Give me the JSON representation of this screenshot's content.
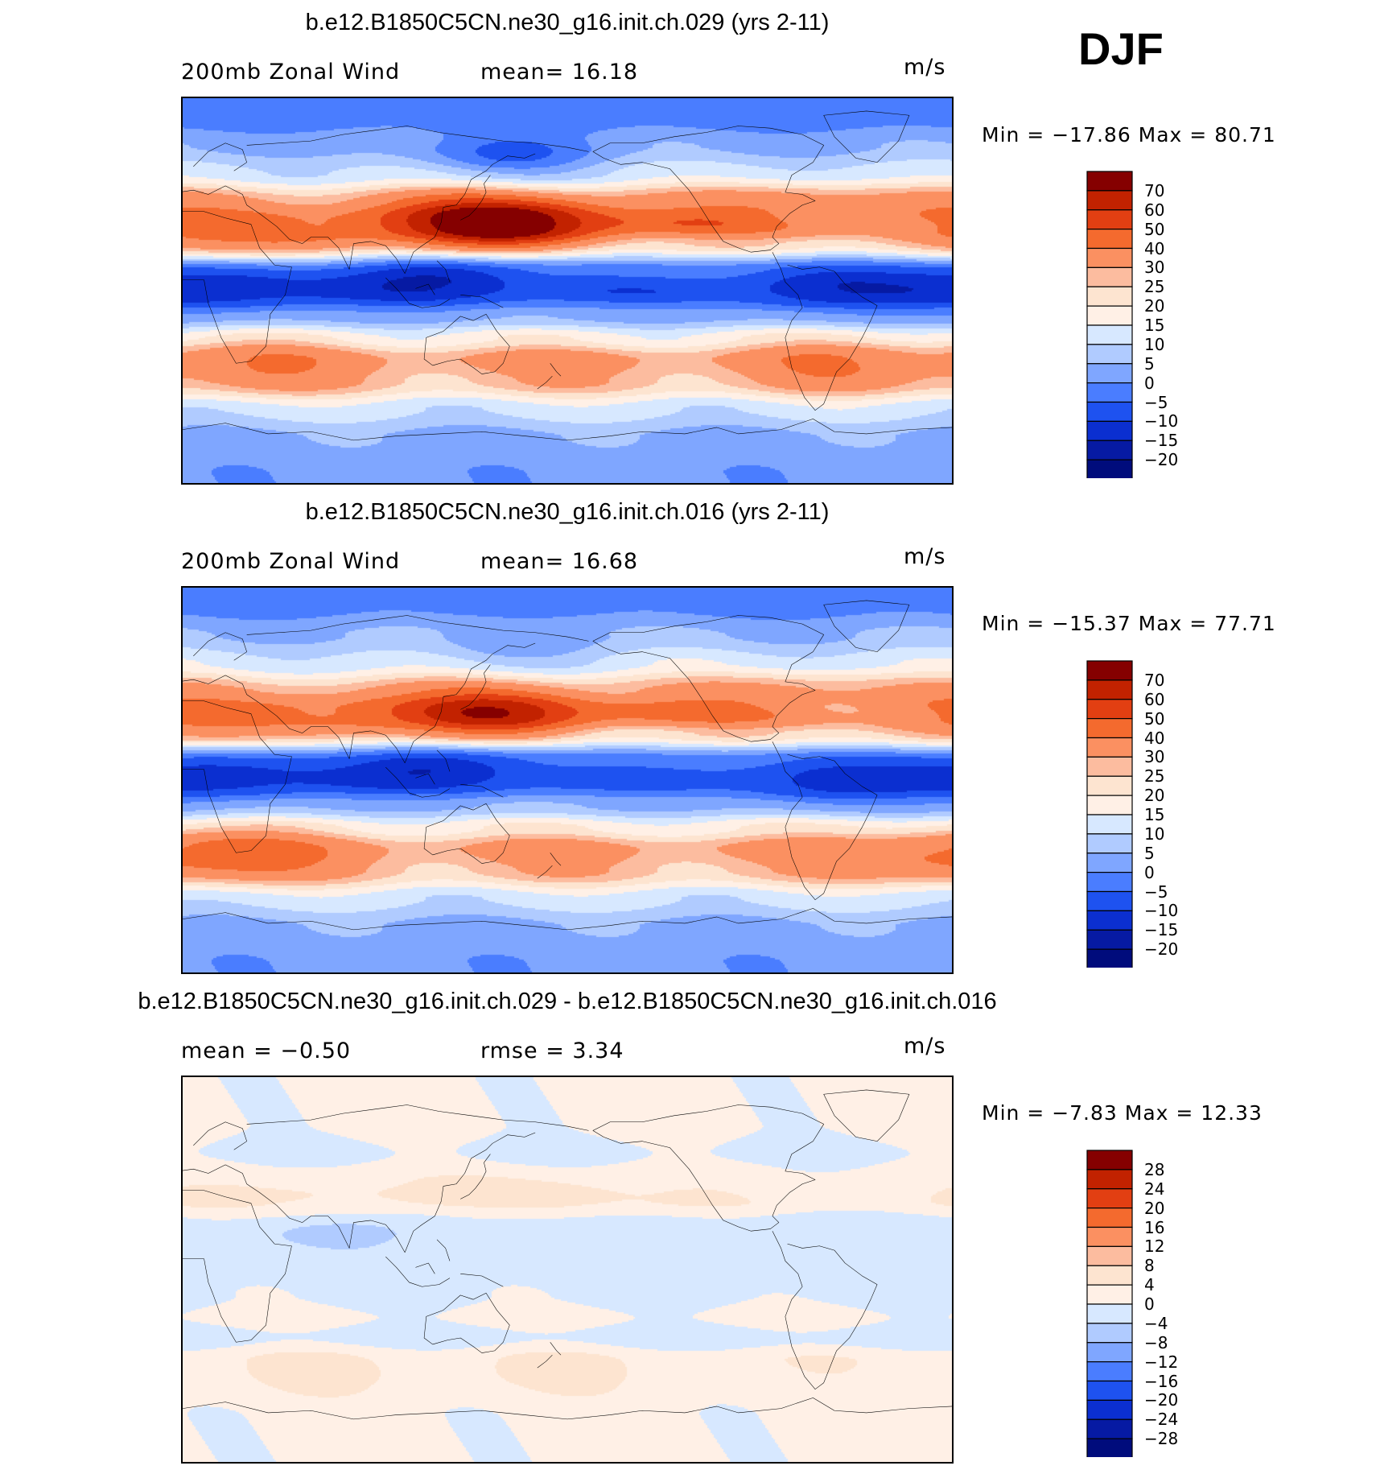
{
  "season": "DJF",
  "units": "m/s",
  "panels": [
    {
      "title": "b.e12.B1850C5CN.ne30_g16.init.ch.029 (yrs 2-11)",
      "left_label": "200mb  Zonal  Wind",
      "mid_label": "mean=   16.18",
      "units": "m/s",
      "min_max": "Min  =  −17.86  Max  =    80.71"
    },
    {
      "title": "b.e12.B1850C5CN.ne30_g16.init.ch.016 (yrs 2-11)",
      "left_label": "200mb  Zonal  Wind",
      "mid_label": "mean=   16.68",
      "units": "m/s",
      "min_max": "Min  =  −15.37  Max  =    77.71"
    },
    {
      "title": "b.e12.B1850C5CN.ne30_g16.init.ch.029 - b.e12.B1850C5CN.ne30_g16.init.ch.016",
      "left_label": "mean  =    −0.50",
      "mid_label": "rmse  =     3.34",
      "units": "m/s",
      "min_max": "Min  =    −7.83  Max  =    12.33"
    }
  ],
  "chart_data": [
    {
      "type": "heatmap",
      "title": "b.e12.B1850C5CN.ne30_g16.init.ch.029 (yrs 2-11)",
      "variable": "200mb Zonal Wind",
      "mean": 16.18,
      "min": -17.86,
      "max": 80.71,
      "colorbar_levels": [
        "70",
        "60",
        "50",
        "40",
        "30",
        "25",
        "20",
        "15",
        "10",
        "5",
        "0",
        "−5",
        "−10",
        "−15",
        "−20"
      ],
      "colorbar_colors": [
        "#850000",
        "#c22200",
        "#e23f12",
        "#f46a2e",
        "#fb9061",
        "#fcbc9f",
        "#fde4d0",
        "#fff0e6",
        "#d7e8ff",
        "#b0cbff",
        "#7fa6ff",
        "#4a7dff",
        "#1e52f0",
        "#0b2fd0",
        "#061aa3",
        "#000c7c"
      ],
      "bands": [
        {
          "lat": 82,
          "value": -3
        },
        {
          "lat": 68,
          "value": 4
        },
        {
          "lat": 55,
          "value": 12
        },
        {
          "lat": 42,
          "value": 30
        },
        {
          "lat": 32,
          "value": 45
        },
        {
          "lat": 22,
          "value": 22
        },
        {
          "lat": 10,
          "value": -2
        },
        {
          "lat": 0,
          "value": -8
        },
        {
          "lat": -12,
          "value": 4
        },
        {
          "lat": -22,
          "value": 18
        },
        {
          "lat": -32,
          "value": 33
        },
        {
          "lat": -42,
          "value": 28
        },
        {
          "lat": -55,
          "value": 12
        },
        {
          "lat": -68,
          "value": 4
        },
        {
          "lat": -85,
          "value": 1
        }
      ],
      "features": [
        {
          "lon": 160,
          "lat": 32,
          "value": 72
        },
        {
          "lon": 135,
          "lat": 33,
          "value": 58
        },
        {
          "lon": 60,
          "lat": 28,
          "value": 46
        },
        {
          "lon": 290,
          "lat": 38,
          "value": 40
        },
        {
          "lon": 352,
          "lat": 30,
          "value": 36
        },
        {
          "lon": 20,
          "lat": 2,
          "value": -15
        },
        {
          "lon": 120,
          "lat": 5,
          "value": -16
        },
        {
          "lon": 300,
          "lat": 2,
          "value": -14
        },
        {
          "lon": 30,
          "lat": -35,
          "value": 38
        },
        {
          "lon": 310,
          "lat": -35,
          "value": 38
        },
        {
          "lon": 150,
          "lat": 65,
          "value": -6
        }
      ]
    },
    {
      "type": "heatmap",
      "title": "b.e12.B1850C5CN.ne30_g16.init.ch.016 (yrs 2-11)",
      "variable": "200mb Zonal Wind",
      "mean": 16.68,
      "min": -15.37,
      "max": 77.71,
      "colorbar_levels": [
        "70",
        "60",
        "50",
        "40",
        "30",
        "25",
        "20",
        "15",
        "10",
        "5",
        "0",
        "−5",
        "−10",
        "−15",
        "−20"
      ],
      "colorbar_colors": [
        "#850000",
        "#c22200",
        "#e23f12",
        "#f46a2e",
        "#fb9061",
        "#fcbc9f",
        "#fde4d0",
        "#fff0e6",
        "#d7e8ff",
        "#b0cbff",
        "#7fa6ff",
        "#4a7dff",
        "#1e52f0",
        "#0b2fd0",
        "#061aa3",
        "#000c7c"
      ],
      "bands": [
        {
          "lat": 82,
          "value": -2
        },
        {
          "lat": 68,
          "value": 5
        },
        {
          "lat": 55,
          "value": 13
        },
        {
          "lat": 42,
          "value": 28
        },
        {
          "lat": 32,
          "value": 44
        },
        {
          "lat": 22,
          "value": 22
        },
        {
          "lat": 10,
          "value": -2
        },
        {
          "lat": 0,
          "value": -7
        },
        {
          "lat": -12,
          "value": 5
        },
        {
          "lat": -22,
          "value": 19
        },
        {
          "lat": -32,
          "value": 33
        },
        {
          "lat": -42,
          "value": 28
        },
        {
          "lat": -55,
          "value": 12
        },
        {
          "lat": -68,
          "value": 4
        },
        {
          "lat": -85,
          "value": 1
        }
      ],
      "features": [
        {
          "lon": 150,
          "lat": 32,
          "value": 68
        },
        {
          "lon": 70,
          "lat": 30,
          "value": 46
        },
        {
          "lon": 290,
          "lat": 38,
          "value": 36
        },
        {
          "lon": 350,
          "lat": 30,
          "value": 36
        },
        {
          "lon": 20,
          "lat": 2,
          "value": -14
        },
        {
          "lon": 120,
          "lat": 5,
          "value": -15
        },
        {
          "lon": 300,
          "lat": 0,
          "value": -12
        },
        {
          "lon": 30,
          "lat": -35,
          "value": 40
        },
        {
          "lon": 355,
          "lat": -35,
          "value": 42
        },
        {
          "lon": 150,
          "lat": 65,
          "value": 3
        }
      ]
    },
    {
      "type": "heatmap",
      "title": "b.e12.B1850C5CN.ne30_g16.init.ch.029 - b.e12.B1850C5CN.ne30_g16.init.ch.016",
      "variable": "200mb Zonal Wind difference",
      "mean": -0.5,
      "rmse": 3.34,
      "min": -7.83,
      "max": 12.33,
      "colorbar_levels": [
        "28",
        "24",
        "20",
        "16",
        "12",
        "8",
        "4",
        "0",
        "−4",
        "−8",
        "−12",
        "−16",
        "−20",
        "−24",
        "−28"
      ],
      "colorbar_colors": [
        "#850000",
        "#c22200",
        "#e23f12",
        "#f46a2e",
        "#fb9061",
        "#fcbc9f",
        "#fde4d0",
        "#fff0e6",
        "#d7e8ff",
        "#b0cbff",
        "#7fa6ff",
        "#4a7dff",
        "#1e52f0",
        "#0b2fd0",
        "#061aa3",
        "#000c7c"
      ],
      "bands": [
        {
          "lat": 82,
          "value": 1
        },
        {
          "lat": 68,
          "value": 1
        },
        {
          "lat": 55,
          "value": -1
        },
        {
          "lat": 42,
          "value": 2
        },
        {
          "lat": 32,
          "value": 3
        },
        {
          "lat": 22,
          "value": -2
        },
        {
          "lat": 10,
          "value": -1
        },
        {
          "lat": 0,
          "value": -2
        },
        {
          "lat": -12,
          "value": -1
        },
        {
          "lat": -22,
          "value": 1
        },
        {
          "lat": -32,
          "value": -2
        },
        {
          "lat": -42,
          "value": 3
        },
        {
          "lat": -55,
          "value": 2
        },
        {
          "lat": -68,
          "value": 1
        },
        {
          "lat": -85,
          "value": 1
        }
      ],
      "features": [
        {
          "lon": 165,
          "lat": 33,
          "value": 9
        },
        {
          "lon": 60,
          "lat": 33,
          "value": 6
        },
        {
          "lon": 150,
          "lat": 22,
          "value": -5
        },
        {
          "lon": 60,
          "lat": 18,
          "value": -5
        },
        {
          "lon": 60,
          "lat": -48,
          "value": 5
        },
        {
          "lon": 170,
          "lat": -48,
          "value": 5
        },
        {
          "lon": 270,
          "lat": 5,
          "value": -5
        }
      ]
    }
  ]
}
